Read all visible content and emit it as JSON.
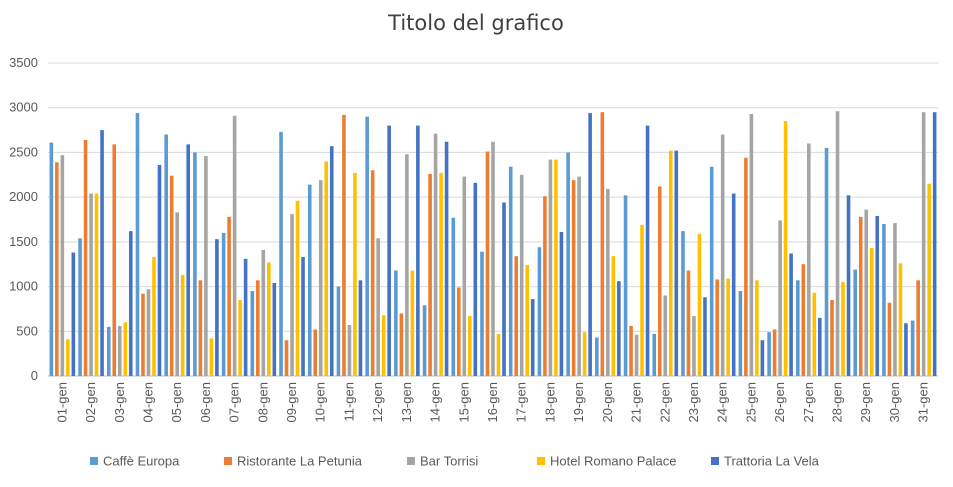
{
  "chart_data": {
    "type": "bar",
    "title": "Titolo del grafico",
    "xlabel": "",
    "ylabel": "",
    "ylim": [
      0,
      3500
    ],
    "yticks": [
      0,
      500,
      1000,
      1500,
      2000,
      2500,
      3000,
      3500
    ],
    "grid": "horizontal",
    "legend": "bottom",
    "categories": [
      "01-gen",
      "02-gen",
      "03-gen",
      "04-gen",
      "05-gen",
      "06-gen",
      "07-gen",
      "08-gen",
      "09-gen",
      "10-gen",
      "11-gen",
      "12-gen",
      "13-gen",
      "14-gen",
      "15-gen",
      "16-gen",
      "17-gen",
      "18-gen",
      "19-gen",
      "20-gen",
      "21-gen",
      "22-gen",
      "23-gen",
      "24-gen",
      "25-gen",
      "26-gen",
      "27-gen",
      "28-gen",
      "29-gen",
      "30-gen",
      "31-gen"
    ],
    "series": [
      {
        "name": "Caffè Europa",
        "color": "#5B9BD5",
        "values": [
          2610,
          1540,
          550,
          2940,
          2700,
          2500,
          1600,
          950,
          2730,
          2140,
          1000,
          2900,
          1180,
          790,
          1770,
          1390,
          2340,
          1440,
          2500,
          430,
          2020,
          470,
          1620,
          2340,
          950,
          490,
          1070,
          2550,
          1190,
          1700,
          620
        ]
      },
      {
        "name": "Ristorante La Petunia",
        "color": "#ED7D31",
        "values": [
          2390,
          2640,
          2590,
          920,
          2240,
          1070,
          1780,
          1070,
          400,
          520,
          2920,
          2300,
          700,
          2260,
          990,
          2510,
          1340,
          2010,
          2190,
          2950,
          560,
          2120,
          1180,
          1080,
          2440,
          520,
          1250,
          850,
          1780,
          820,
          1070
        ]
      },
      {
        "name": "Bar Torrisi",
        "color": "#A5A5A5",
        "values": [
          2470,
          2040,
          560,
          970,
          1830,
          2460,
          2910,
          1410,
          1810,
          2190,
          570,
          1540,
          2480,
          2710,
          2230,
          2620,
          2250,
          2420,
          2230,
          2090,
          460,
          900,
          670,
          2700,
          2930,
          1740,
          2600,
          2960,
          1860,
          1710,
          2950
        ]
      },
      {
        "name": "Hotel Romano Palace",
        "color": "#FFC000",
        "values": [
          410,
          2040,
          600,
          1330,
          1130,
          420,
          850,
          1270,
          1960,
          2400,
          2270,
          680,
          1180,
          2270,
          670,
          470,
          1240,
          2420,
          490,
          1340,
          1690,
          2520,
          1590,
          1090,
          1070,
          2850,
          930,
          1050,
          1430,
          1260,
          2150
        ]
      },
      {
        "name": "Trattoria La Vela",
        "color": "#4472C4",
        "values": [
          1380,
          2750,
          1620,
          2360,
          2590,
          1530,
          1310,
          1040,
          1330,
          2570,
          1070,
          2800,
          2800,
          2620,
          2160,
          1940,
          860,
          1610,
          2940,
          1060,
          2800,
          2520,
          880,
          2040,
          400,
          1370,
          650,
          2020,
          1790,
          590,
          2950
        ]
      }
    ]
  }
}
